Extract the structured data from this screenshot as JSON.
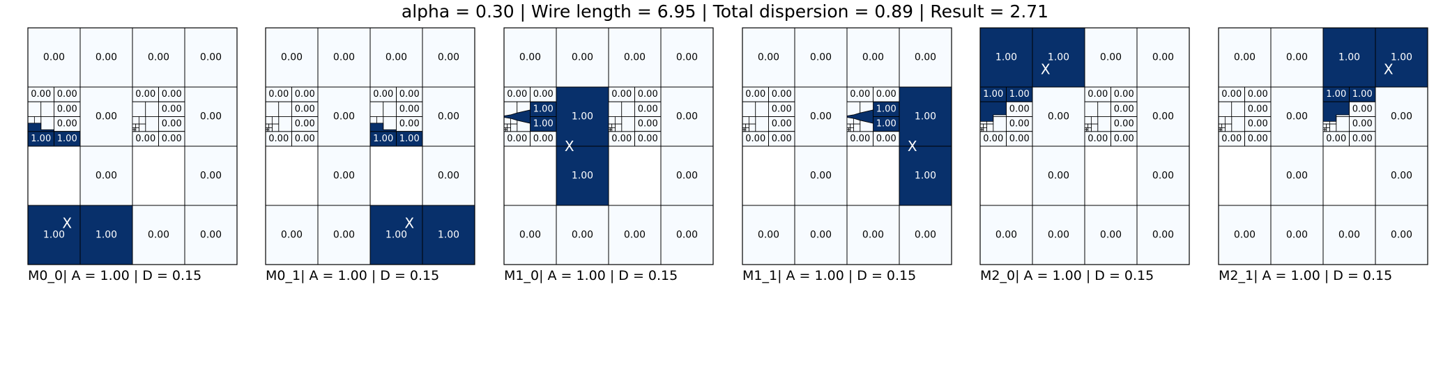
{
  "title": "alpha = 0.30 | Wire length = 6.95 | Total dispersion = 0.89 | Result = 2.71",
  "colors": {
    "filled": "#08306b",
    "empty": "#f7fbff",
    "edge": "#000000",
    "text_on_filled": "#ffffff",
    "text_on_empty": "#000000"
  },
  "chart_data": {
    "type": "heatmap",
    "description_grid": "4 columns x 4 rows of quadtree cells per panel; rows are numbered from the top. The left half of the two middle rows is subdivided into 4x4 sub-cells, each of whose bottom-left cell is recursively subdivided into tiny cells.",
    "panels": [
      {
        "label": "M0_0| A = 1.00 | D = 0.15",
        "cells": [
          {
            "col": 0,
            "row": 0,
            "value": 0.0
          },
          {
            "col": 1,
            "row": 0,
            "value": 0.0
          },
          {
            "col": 2,
            "row": 0,
            "value": 0.0
          },
          {
            "col": 3,
            "row": 0,
            "value": 0.0
          },
          {
            "col": 1,
            "row": 1,
            "value": 0.0
          },
          {
            "col": 3,
            "row": 1,
            "value": 0.0
          },
          {
            "col": 1,
            "row": 2,
            "value": 0.0
          },
          {
            "col": 3,
            "row": 2,
            "value": 0.0
          },
          {
            "col": 0,
            "row": 3,
            "value": 1.0
          },
          {
            "col": 1,
            "row": 3,
            "value": 1.0
          },
          {
            "col": 2,
            "row": 3,
            "value": 0.0
          },
          {
            "col": 3,
            "row": 3,
            "value": 0.0
          }
        ],
        "subcells": [
          {
            "block": 0,
            "sub": [
              0,
              0
            ],
            "value": 0.0
          },
          {
            "block": 0,
            "sub": [
              1,
              0
            ],
            "value": 0.0
          },
          {
            "block": 0,
            "sub": [
              1,
              1
            ],
            "value": 0.0
          },
          {
            "block": 0,
            "sub": [
              1,
              2
            ],
            "value": 0.0
          },
          {
            "block": 0,
            "sub": [
              0,
              3
            ],
            "value": 1.0
          },
          {
            "block": 0,
            "sub": [
              1,
              3
            ],
            "value": 1.0
          },
          {
            "block": 1,
            "sub": [
              0,
              0
            ],
            "value": 0.0
          },
          {
            "block": 1,
            "sub": [
              1,
              0
            ],
            "value": 0.0
          },
          {
            "block": 1,
            "sub": [
              1,
              1
            ],
            "value": 0.0
          },
          {
            "block": 1,
            "sub": [
              1,
              2
            ],
            "value": 0.0
          },
          {
            "block": 1,
            "sub": [
              0,
              3
            ],
            "value": 0.0
          },
          {
            "block": 1,
            "sub": [
              1,
              3
            ],
            "value": 0.0
          }
        ],
        "filled_fine": [
          0
        ],
        "marker": {
          "label": "X",
          "x": 0.75,
          "y": 3.3
        }
      },
      {
        "label": "M0_1| A = 1.00 | D = 0.15",
        "cells": [
          {
            "col": 0,
            "row": 0,
            "value": 0.0
          },
          {
            "col": 1,
            "row": 0,
            "value": 0.0
          },
          {
            "col": 2,
            "row": 0,
            "value": 0.0
          },
          {
            "col": 3,
            "row": 0,
            "value": 0.0
          },
          {
            "col": 1,
            "row": 1,
            "value": 0.0
          },
          {
            "col": 3,
            "row": 1,
            "value": 0.0
          },
          {
            "col": 1,
            "row": 2,
            "value": 0.0
          },
          {
            "col": 3,
            "row": 2,
            "value": 0.0
          },
          {
            "col": 0,
            "row": 3,
            "value": 0.0
          },
          {
            "col": 1,
            "row": 3,
            "value": 0.0
          },
          {
            "col": 2,
            "row": 3,
            "value": 1.0
          },
          {
            "col": 3,
            "row": 3,
            "value": 1.0
          }
        ],
        "subcells": [
          {
            "block": 0,
            "sub": [
              0,
              0
            ],
            "value": 0.0
          },
          {
            "block": 0,
            "sub": [
              1,
              0
            ],
            "value": 0.0
          },
          {
            "block": 0,
            "sub": [
              1,
              1
            ],
            "value": 0.0
          },
          {
            "block": 0,
            "sub": [
              1,
              2
            ],
            "value": 0.0
          },
          {
            "block": 0,
            "sub": [
              0,
              3
            ],
            "value": 0.0
          },
          {
            "block": 0,
            "sub": [
              1,
              3
            ],
            "value": 0.0
          },
          {
            "block": 1,
            "sub": [
              0,
              0
            ],
            "value": 0.0
          },
          {
            "block": 1,
            "sub": [
              1,
              0
            ],
            "value": 0.0
          },
          {
            "block": 1,
            "sub": [
              1,
              1
            ],
            "value": 0.0
          },
          {
            "block": 1,
            "sub": [
              1,
              2
            ],
            "value": 0.0
          },
          {
            "block": 1,
            "sub": [
              0,
              3
            ],
            "value": 1.0
          },
          {
            "block": 1,
            "sub": [
              1,
              3
            ],
            "value": 1.0
          }
        ],
        "filled_fine": [
          1
        ],
        "marker": {
          "label": "X",
          "x": 2.75,
          "y": 3.3
        }
      },
      {
        "label": "M1_0| A = 1.00 | D = 0.15",
        "cells": [
          {
            "col": 0,
            "row": 0,
            "value": 0.0
          },
          {
            "col": 1,
            "row": 0,
            "value": 0.0
          },
          {
            "col": 2,
            "row": 0,
            "value": 0.0
          },
          {
            "col": 3,
            "row": 0,
            "value": 0.0
          },
          {
            "col": 1,
            "row": 1,
            "value": 1.0
          },
          {
            "col": 3,
            "row": 1,
            "value": 0.0
          },
          {
            "col": 1,
            "row": 2,
            "value": 1.0
          },
          {
            "col": 3,
            "row": 2,
            "value": 0.0
          },
          {
            "col": 0,
            "row": 3,
            "value": 0.0
          },
          {
            "col": 1,
            "row": 3,
            "value": 0.0
          },
          {
            "col": 2,
            "row": 3,
            "value": 0.0
          },
          {
            "col": 3,
            "row": 3,
            "value": 0.0
          }
        ],
        "subcells": [
          {
            "block": 0,
            "sub": [
              0,
              0
            ],
            "value": 0.0
          },
          {
            "block": 0,
            "sub": [
              1,
              0
            ],
            "value": 0.0
          },
          {
            "block": 0,
            "sub": [
              1,
              1
            ],
            "value": 1.0
          },
          {
            "block": 0,
            "sub": [
              1,
              2
            ],
            "value": 1.0
          },
          {
            "block": 0,
            "sub": [
              0,
              3
            ],
            "value": 0.0
          },
          {
            "block": 0,
            "sub": [
              1,
              3
            ],
            "value": 0.0
          },
          {
            "block": 1,
            "sub": [
              0,
              0
            ],
            "value": 0.0
          },
          {
            "block": 1,
            "sub": [
              1,
              0
            ],
            "value": 0.0
          },
          {
            "block": 1,
            "sub": [
              1,
              1
            ],
            "value": 0.0
          },
          {
            "block": 1,
            "sub": [
              1,
              2
            ],
            "value": 0.0
          },
          {
            "block": 1,
            "sub": [
              0,
              3
            ],
            "value": 0.0
          },
          {
            "block": 1,
            "sub": [
              1,
              3
            ],
            "value": 0.0
          }
        ],
        "filled_fine": [
          0
        ],
        "marker": {
          "label": "X",
          "x": 1.25,
          "y": 2.0
        }
      },
      {
        "label": "M1_1| A = 1.00 | D = 0.15",
        "cells": [
          {
            "col": 0,
            "row": 0,
            "value": 0.0
          },
          {
            "col": 1,
            "row": 0,
            "value": 0.0
          },
          {
            "col": 2,
            "row": 0,
            "value": 0.0
          },
          {
            "col": 3,
            "row": 0,
            "value": 0.0
          },
          {
            "col": 1,
            "row": 1,
            "value": 0.0
          },
          {
            "col": 3,
            "row": 1,
            "value": 1.0
          },
          {
            "col": 1,
            "row": 2,
            "value": 0.0
          },
          {
            "col": 3,
            "row": 2,
            "value": 1.0
          },
          {
            "col": 0,
            "row": 3,
            "value": 0.0
          },
          {
            "col": 1,
            "row": 3,
            "value": 0.0
          },
          {
            "col": 2,
            "row": 3,
            "value": 0.0
          },
          {
            "col": 3,
            "row": 3,
            "value": 0.0
          }
        ],
        "subcells": [
          {
            "block": 0,
            "sub": [
              0,
              0
            ],
            "value": 0.0
          },
          {
            "block": 0,
            "sub": [
              1,
              0
            ],
            "value": 0.0
          },
          {
            "block": 0,
            "sub": [
              1,
              1
            ],
            "value": 0.0
          },
          {
            "block": 0,
            "sub": [
              1,
              2
            ],
            "value": 0.0
          },
          {
            "block": 0,
            "sub": [
              0,
              3
            ],
            "value": 0.0
          },
          {
            "block": 0,
            "sub": [
              1,
              3
            ],
            "value": 0.0
          },
          {
            "block": 1,
            "sub": [
              0,
              0
            ],
            "value": 0.0
          },
          {
            "block": 1,
            "sub": [
              1,
              0
            ],
            "value": 0.0
          },
          {
            "block": 1,
            "sub": [
              1,
              1
            ],
            "value": 1.0
          },
          {
            "block": 1,
            "sub": [
              1,
              2
            ],
            "value": 1.0
          },
          {
            "block": 1,
            "sub": [
              0,
              3
            ],
            "value": 0.0
          },
          {
            "block": 1,
            "sub": [
              1,
              3
            ],
            "value": 0.0
          }
        ],
        "filled_fine": [
          1
        ],
        "marker": {
          "label": "X",
          "x": 3.25,
          "y": 2.0
        }
      },
      {
        "label": "M2_0| A = 1.00 | D = 0.15",
        "cells": [
          {
            "col": 0,
            "row": 0,
            "value": 1.0
          },
          {
            "col": 1,
            "row": 0,
            "value": 1.0
          },
          {
            "col": 2,
            "row": 0,
            "value": 0.0
          },
          {
            "col": 3,
            "row": 0,
            "value": 0.0
          },
          {
            "col": 1,
            "row": 1,
            "value": 0.0
          },
          {
            "col": 3,
            "row": 1,
            "value": 0.0
          },
          {
            "col": 1,
            "row": 2,
            "value": 0.0
          },
          {
            "col": 3,
            "row": 2,
            "value": 0.0
          },
          {
            "col": 0,
            "row": 3,
            "value": 0.0
          },
          {
            "col": 1,
            "row": 3,
            "value": 0.0
          },
          {
            "col": 2,
            "row": 3,
            "value": 0.0
          },
          {
            "col": 3,
            "row": 3,
            "value": 0.0
          }
        ],
        "subcells": [
          {
            "block": 0,
            "sub": [
              0,
              0
            ],
            "value": 1.0
          },
          {
            "block": 0,
            "sub": [
              1,
              0
            ],
            "value": 1.0
          },
          {
            "block": 0,
            "sub": [
              1,
              1
            ],
            "value": 0.0
          },
          {
            "block": 0,
            "sub": [
              1,
              2
            ],
            "value": 0.0
          },
          {
            "block": 0,
            "sub": [
              0,
              3
            ],
            "value": 0.0
          },
          {
            "block": 0,
            "sub": [
              1,
              3
            ],
            "value": 0.0
          },
          {
            "block": 1,
            "sub": [
              0,
              0
            ],
            "value": 0.0
          },
          {
            "block": 1,
            "sub": [
              1,
              0
            ],
            "value": 0.0
          },
          {
            "block": 1,
            "sub": [
              1,
              1
            ],
            "value": 0.0
          },
          {
            "block": 1,
            "sub": [
              1,
              2
            ],
            "value": 0.0
          },
          {
            "block": 1,
            "sub": [
              0,
              3
            ],
            "value": 0.0
          },
          {
            "block": 1,
            "sub": [
              1,
              3
            ],
            "value": 0.0
          }
        ],
        "filled_fine": [
          0
        ],
        "marker": {
          "label": "X",
          "x": 1.25,
          "y": 0.7
        }
      },
      {
        "label": "M2_1| A = 1.00 | D = 0.15",
        "cells": [
          {
            "col": 0,
            "row": 0,
            "value": 0.0
          },
          {
            "col": 1,
            "row": 0,
            "value": 0.0
          },
          {
            "col": 2,
            "row": 0,
            "value": 1.0
          },
          {
            "col": 3,
            "row": 0,
            "value": 1.0
          },
          {
            "col": 1,
            "row": 1,
            "value": 0.0
          },
          {
            "col": 3,
            "row": 1,
            "value": 0.0
          },
          {
            "col": 1,
            "row": 2,
            "value": 0.0
          },
          {
            "col": 3,
            "row": 2,
            "value": 0.0
          },
          {
            "col": 0,
            "row": 3,
            "value": 0.0
          },
          {
            "col": 1,
            "row": 3,
            "value": 0.0
          },
          {
            "col": 2,
            "row": 3,
            "value": 0.0
          },
          {
            "col": 3,
            "row": 3,
            "value": 0.0
          }
        ],
        "subcells": [
          {
            "block": 0,
            "sub": [
              0,
              0
            ],
            "value": 0.0
          },
          {
            "block": 0,
            "sub": [
              1,
              0
            ],
            "value": 0.0
          },
          {
            "block": 0,
            "sub": [
              1,
              1
            ],
            "value": 0.0
          },
          {
            "block": 0,
            "sub": [
              1,
              2
            ],
            "value": 0.0
          },
          {
            "block": 0,
            "sub": [
              0,
              3
            ],
            "value": 0.0
          },
          {
            "block": 0,
            "sub": [
              1,
              3
            ],
            "value": 0.0
          },
          {
            "block": 1,
            "sub": [
              0,
              0
            ],
            "value": 1.0
          },
          {
            "block": 1,
            "sub": [
              1,
              0
            ],
            "value": 1.0
          },
          {
            "block": 1,
            "sub": [
              1,
              1
            ],
            "value": 0.0
          },
          {
            "block": 1,
            "sub": [
              1,
              2
            ],
            "value": 0.0
          },
          {
            "block": 1,
            "sub": [
              0,
              3
            ],
            "value": 0.0
          },
          {
            "block": 1,
            "sub": [
              1,
              3
            ],
            "value": 0.0
          }
        ],
        "filled_fine": [
          1
        ],
        "marker": {
          "label": "X",
          "x": 3.25,
          "y": 0.7
        }
      }
    ]
  }
}
